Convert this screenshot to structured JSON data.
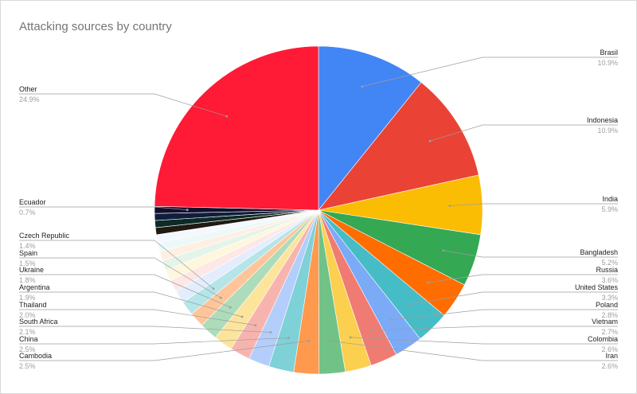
{
  "chart_data": {
    "type": "pie",
    "title": "Attacking sources by country",
    "slices": [
      {
        "label": "Brasil",
        "value": 10.9,
        "display": "10.9%",
        "color": "#4285F4",
        "labeled": true
      },
      {
        "label": "Indonesia",
        "value": 10.9,
        "display": "10.9%",
        "color": "#EA4335",
        "labeled": true
      },
      {
        "label": "India",
        "value": 5.9,
        "display": "5.9%",
        "color": "#FBBC04",
        "labeled": true
      },
      {
        "label": "Bangladesh",
        "value": 5.2,
        "display": "5.2%",
        "color": "#34A853",
        "labeled": true
      },
      {
        "label": "Russia",
        "value": 3.6,
        "display": "3.6%",
        "color": "#FF6D01",
        "labeled": true
      },
      {
        "label": "United States",
        "value": 3.3,
        "display": "3.3%",
        "color": "#46BDC6",
        "labeled": true
      },
      {
        "label": "Poland",
        "value": 2.8,
        "display": "2.8%",
        "color": "#7BAAF7",
        "labeled": true
      },
      {
        "label": "Vietnam",
        "value": 2.7,
        "display": "2.7%",
        "color": "#F07B72",
        "labeled": true
      },
      {
        "label": "Colombia",
        "value": 2.6,
        "display": "2.6%",
        "color": "#FCD04F",
        "labeled": true
      },
      {
        "label": "Iran",
        "value": 2.6,
        "display": "2.6%",
        "color": "#71C287",
        "labeled": true
      },
      {
        "label": "Cambodia",
        "value": 2.5,
        "display": "2.5%",
        "color": "#FF994D",
        "labeled": true
      },
      {
        "label": "China",
        "value": 2.5,
        "display": "2.5%",
        "color": "#7ED1D7",
        "labeled": true
      },
      {
        "label": "South Africa",
        "value": 2.1,
        "display": "2.1%",
        "color": "#B3CEFB",
        "labeled": true
      },
      {
        "label": "Thailand",
        "value": 2.0,
        "display": "2.0%",
        "color": "#F7B4AE",
        "labeled": true
      },
      {
        "label": "Argentina",
        "value": 1.9,
        "display": "1.9%",
        "color": "#FDE49B",
        "labeled": true
      },
      {
        "label": "Ukraine",
        "value": 1.8,
        "display": "1.8%",
        "color": "#AEDCBA",
        "labeled": true
      },
      {
        "label": "Spain",
        "value": 1.5,
        "display": "1.5%",
        "color": "#FFC599",
        "labeled": true
      },
      {
        "label": "Czech Republic",
        "value": 1.4,
        "display": "1.4%",
        "color": "#B5E5E8",
        "labeled": true
      },
      {
        "label": "",
        "value": 1.3,
        "display": "",
        "color": "#E3EDFD",
        "labeled": false
      },
      {
        "label": "",
        "value": 1.2,
        "display": "",
        "color": "#FDE8E6",
        "labeled": false
      },
      {
        "label": "",
        "value": 1.1,
        "display": "",
        "color": "#FEF6DD",
        "labeled": false
      },
      {
        "label": "",
        "value": 1.0,
        "display": "",
        "color": "#E5F4E9",
        "labeled": false
      },
      {
        "label": "",
        "value": 0.9,
        "display": "",
        "color": "#FFEFE3",
        "labeled": false
      },
      {
        "label": "",
        "value": 0.9,
        "display": "",
        "color": "#EDF8F9",
        "labeled": false
      },
      {
        "label": "",
        "value": 0.8,
        "display": "",
        "color": "#F4F8FE",
        "labeled": false
      },
      {
        "label": "",
        "value": 0.7,
        "display": "",
        "color": "#201A12",
        "labeled": false
      },
      {
        "label": "",
        "value": 0.7,
        "display": "",
        "color": "#0E2A27",
        "labeled": false
      },
      {
        "label": "",
        "value": 0.7,
        "display": "",
        "color": "#0F1E3A",
        "labeled": false
      },
      {
        "label": "Ecuador",
        "value": 0.7,
        "display": "0.7%",
        "color": "#140E2E",
        "labeled": true
      },
      {
        "label": "Other",
        "value": 24.9,
        "display": "24.9%",
        "color": "#FF1A35",
        "labeled": true
      }
    ]
  }
}
